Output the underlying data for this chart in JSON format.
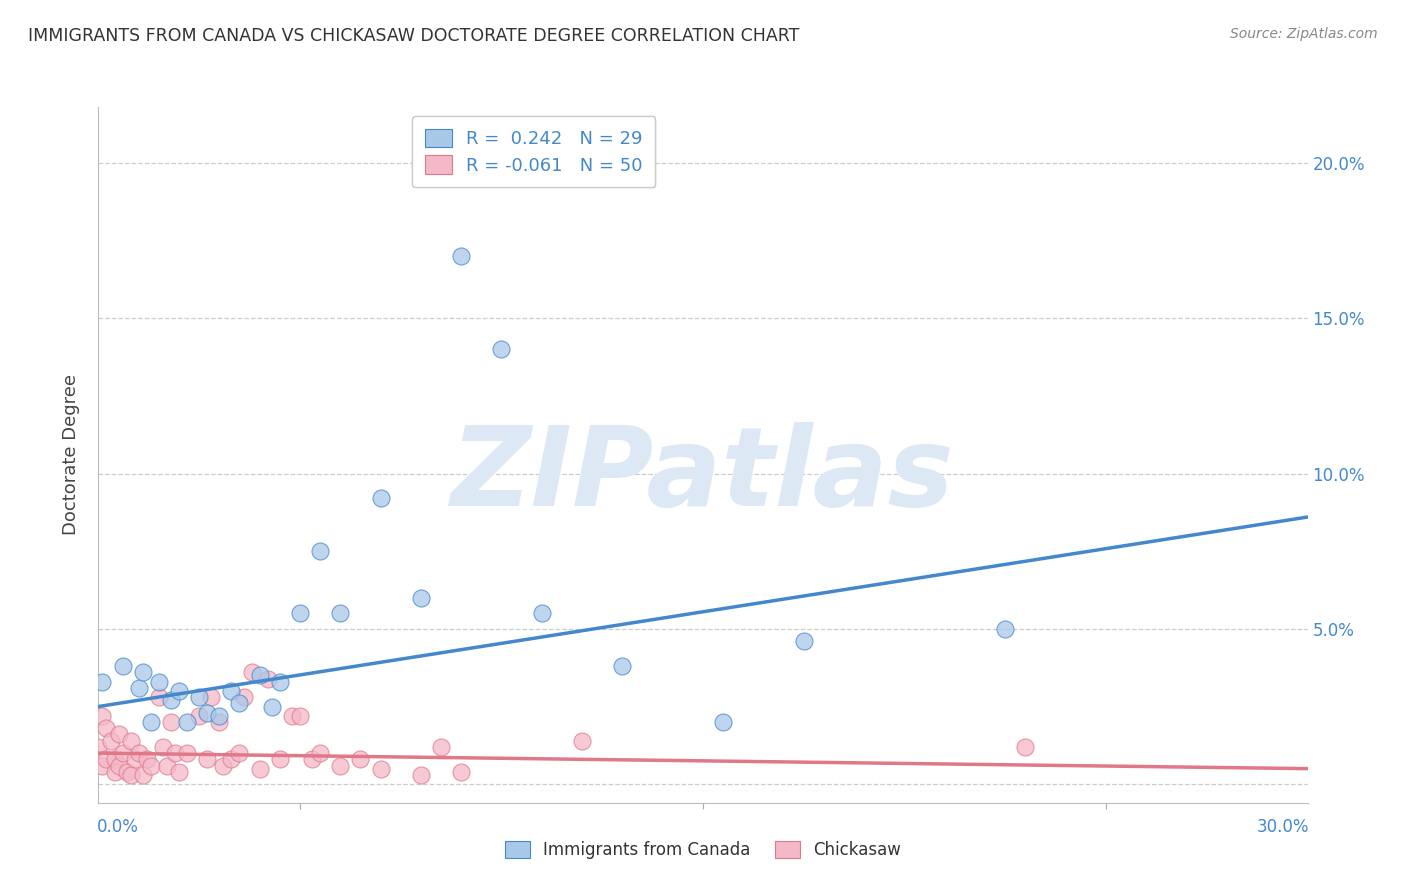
{
  "title": "IMMIGRANTS FROM CANADA VS CHICKASAW DOCTORATE DEGREE CORRELATION CHART",
  "source": "Source: ZipAtlas.com",
  "ylabel": "Doctorate Degree",
  "yticks": [
    0.0,
    0.05,
    0.1,
    0.15,
    0.2
  ],
  "ytick_labels": [
    "",
    "5.0%",
    "10.0%",
    "15.0%",
    "20.0%"
  ],
  "xlim": [
    0.0,
    0.3
  ],
  "ylim": [
    -0.006,
    0.218
  ],
  "watermark": "ZIPatlas",
  "blue_scatter_x": [
    0.001,
    0.006,
    0.01,
    0.011,
    0.013,
    0.015,
    0.018,
    0.02,
    0.022,
    0.025,
    0.027,
    0.03,
    0.033,
    0.035,
    0.04,
    0.043,
    0.045,
    0.05,
    0.055,
    0.06,
    0.07,
    0.08,
    0.09,
    0.1,
    0.11,
    0.13,
    0.155,
    0.175,
    0.225
  ],
  "blue_scatter_y": [
    0.033,
    0.038,
    0.031,
    0.036,
    0.02,
    0.033,
    0.027,
    0.03,
    0.02,
    0.028,
    0.023,
    0.022,
    0.03,
    0.026,
    0.035,
    0.025,
    0.033,
    0.055,
    0.075,
    0.055,
    0.092,
    0.06,
    0.17,
    0.14,
    0.055,
    0.038,
    0.02,
    0.046,
    0.05
  ],
  "pink_scatter_x": [
    0.0,
    0.001,
    0.001,
    0.002,
    0.002,
    0.003,
    0.004,
    0.004,
    0.005,
    0.005,
    0.006,
    0.007,
    0.008,
    0.008,
    0.009,
    0.01,
    0.011,
    0.012,
    0.013,
    0.015,
    0.016,
    0.017,
    0.018,
    0.019,
    0.02,
    0.022,
    0.025,
    0.027,
    0.028,
    0.03,
    0.031,
    0.033,
    0.035,
    0.036,
    0.038,
    0.04,
    0.042,
    0.045,
    0.048,
    0.05,
    0.053,
    0.055,
    0.06,
    0.065,
    0.07,
    0.08,
    0.085,
    0.09,
    0.12,
    0.23
  ],
  "pink_scatter_y": [
    0.012,
    0.022,
    0.006,
    0.018,
    0.008,
    0.014,
    0.008,
    0.004,
    0.016,
    0.006,
    0.01,
    0.004,
    0.014,
    0.003,
    0.008,
    0.01,
    0.003,
    0.008,
    0.006,
    0.028,
    0.012,
    0.006,
    0.02,
    0.01,
    0.004,
    0.01,
    0.022,
    0.008,
    0.028,
    0.02,
    0.006,
    0.008,
    0.01,
    0.028,
    0.036,
    0.005,
    0.034,
    0.008,
    0.022,
    0.022,
    0.008,
    0.01,
    0.006,
    0.008,
    0.005,
    0.003,
    0.012,
    0.004,
    0.014,
    0.012
  ],
  "blue_line_x": [
    0.0,
    0.3
  ],
  "blue_line_y": [
    0.025,
    0.086
  ],
  "pink_line_x": [
    0.0,
    0.3
  ],
  "pink_line_y": [
    0.01,
    0.005
  ],
  "blue_color": "#a8c8e8",
  "pink_color": "#f4b8c8",
  "blue_line_color": "#4488cc",
  "pink_line_color": "#e07888",
  "right_axis_color": "#4488cc",
  "title_color": "#333333",
  "source_color": "#888888",
  "grid_color": "#cccccc",
  "watermark_color": "#dde8f5"
}
